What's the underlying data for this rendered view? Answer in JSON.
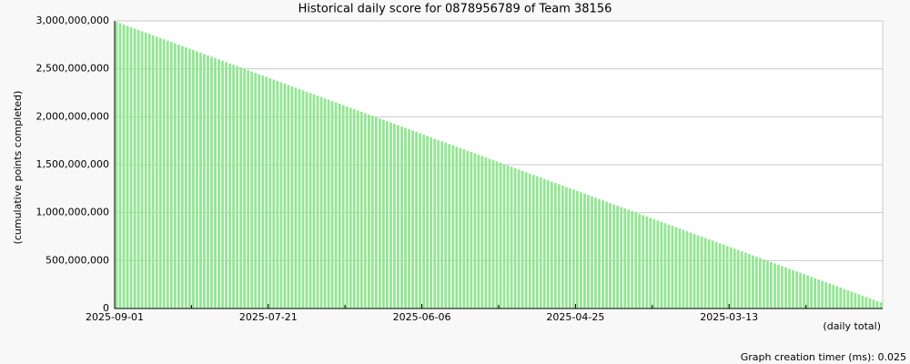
{
  "chart_data": {
    "type": "bar",
    "title": "Historical daily score for 0878956789 of Team 38156",
    "y_label": "(cumulative points completed)",
    "x_label": "(daily total)",
    "footer": "Graph creation timer (ms): 0.025",
    "color": "#93e693",
    "grid": true,
    "ylim": [
      0,
      3000000000
    ],
    "yticks": [
      0,
      {
        "value": 500000000,
        "label": "500,000,000"
      },
      {
        "value": 1000000000,
        "label": "1,000,000,000"
      },
      {
        "value": 1500000000,
        "label": "1,500,000,000"
      },
      {
        "value": 2000000000,
        "label": "2,000,000,000"
      },
      {
        "value": 2500000000,
        "label": "2,500,000,000"
      },
      {
        "value": 3000000000,
        "label": "3,000,000,000"
      }
    ],
    "categories": [
      "2025-09-01",
      null,
      null,
      null,
      null,
      null,
      null,
      null,
      null,
      null,
      null,
      null,
      null,
      null,
      null,
      null,
      null,
      null,
      null,
      null,
      null,
      null,
      null,
      null,
      null,
      null,
      null,
      null,
      null,
      null,
      null,
      null,
      null,
      null,
      null,
      null,
      null,
      null,
      null,
      null,
      null,
      null,
      "2025-07-21",
      null,
      null,
      null,
      null,
      null,
      null,
      null,
      null,
      null,
      null,
      null,
      null,
      null,
      null,
      null,
      null,
      null,
      null,
      null,
      null,
      null,
      null,
      null,
      null,
      null,
      null,
      null,
      null,
      null,
      null,
      null,
      null,
      null,
      null,
      null,
      null,
      null,
      null,
      null,
      null,
      null,
      "2025-06-06",
      null,
      null,
      null,
      null,
      null,
      null,
      null,
      null,
      null,
      null,
      null,
      null,
      null,
      null,
      null,
      null,
      null,
      null,
      null,
      null,
      null,
      null,
      null,
      null,
      null,
      null,
      null,
      null,
      null,
      null,
      null,
      null,
      null,
      null,
      null,
      null,
      null,
      null,
      null,
      null,
      null,
      "2025-04-25",
      null,
      null,
      null,
      null,
      null,
      null,
      null,
      null,
      null,
      null,
      null,
      null,
      null,
      null,
      null,
      null,
      null,
      null,
      null,
      null,
      null,
      null,
      null,
      null,
      null,
      null,
      null,
      null,
      null,
      null,
      null,
      null,
      null,
      null,
      null,
      null,
      null,
      null,
      null,
      null,
      null,
      "2025-03-13",
      null,
      null,
      null,
      null,
      null,
      null,
      null,
      null,
      null,
      null,
      null,
      null,
      null,
      null,
      null,
      null,
      null,
      null,
      null,
      null,
      null,
      null,
      null,
      null,
      null,
      null,
      null,
      null,
      null,
      null,
      null,
      null,
      null,
      null,
      null,
      null,
      null,
      null,
      null,
      null,
      null
    ],
    "values": [
      2990000000,
      2976000000,
      2962000000,
      2948000000,
      2934000000,
      2920000000,
      2906000000,
      2892000000,
      2878000000,
      2864000000,
      2850000000,
      2836000000,
      2822000000,
      2808000000,
      2794000000,
      2780000000,
      2766000000,
      2752000000,
      2738000000,
      2724000000,
      2710000000,
      2696000000,
      2682000000,
      2668000000,
      2654000000,
      2640000000,
      2626000000,
      2612000000,
      2598000000,
      2584000000,
      2570000000,
      2556000000,
      2542000000,
      2528000000,
      2514000000,
      2500000000,
      2486000000,
      2472000000,
      2458000000,
      2444000000,
      2430000000,
      2416000000,
      2402000000,
      2388000000,
      2374000000,
      2360000000,
      2346000000,
      2332000000,
      2318000000,
      2304000000,
      2290000000,
      2276000000,
      2262000000,
      2248000000,
      2234000000,
      2220000000,
      2206000000,
      2192000000,
      2178000000,
      2164000000,
      2150000000,
      2136000000,
      2122000000,
      2108000000,
      2094000000,
      2080000000,
      2066000000,
      2052000000,
      2038000000,
      2024000000,
      2010000000,
      1996000000,
      1982000000,
      1968000000,
      1954000000,
      1940000000,
      1926000000,
      1912000000,
      1898000000,
      1884000000,
      1870000000,
      1856000000,
      1842000000,
      1828000000,
      1814000000,
      1800000000,
      1786000000,
      1772000000,
      1758000000,
      1744000000,
      1730000000,
      1716000000,
      1702000000,
      1688000000,
      1674000000,
      1660000000,
      1646000000,
      1632000000,
      1618000000,
      1604000000,
      1590000000,
      1576000000,
      1562000000,
      1548000000,
      1534000000,
      1520000000,
      1506000000,
      1492000000,
      1478000000,
      1464000000,
      1450000000,
      1436000000,
      1422000000,
      1408000000,
      1394000000,
      1380000000,
      1366000000,
      1352000000,
      1338000000,
      1324000000,
      1310000000,
      1296000000,
      1282000000,
      1268000000,
      1254000000,
      1240000000,
      1226000000,
      1212000000,
      1198000000,
      1184000000,
      1170000000,
      1156000000,
      1142000000,
      1128000000,
      1114000000,
      1100000000,
      1086000000,
      1072000000,
      1058000000,
      1044000000,
      1030000000,
      1016000000,
      1002000000,
      988000000,
      974000000,
      960000000,
      946000000,
      932000000,
      918000000,
      904000000,
      890000000,
      876000000,
      862000000,
      848000000,
      834000000,
      820000000,
      806000000,
      792000000,
      778000000,
      764000000,
      750000000,
      736000000,
      722000000,
      708000000,
      694000000,
      680000000,
      666000000,
      652000000,
      638000000,
      624000000,
      610000000,
      596000000,
      582000000,
      568000000,
      554000000,
      540000000,
      526000000,
      512000000,
      498000000,
      484000000,
      470000000,
      456000000,
      442000000,
      428000000,
      414000000,
      400000000,
      386000000,
      372000000,
      358000000,
      344000000,
      330000000,
      316000000,
      302000000,
      288000000,
      274000000,
      260000000,
      246000000,
      232000000,
      218000000,
      204000000,
      190000000,
      176000000,
      162000000,
      148000000,
      134000000,
      120000000,
      106000000,
      92000000,
      78000000,
      64000000
    ]
  }
}
